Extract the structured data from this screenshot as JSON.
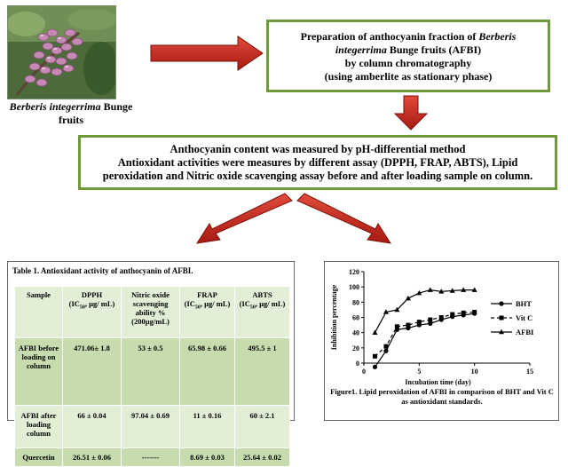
{
  "photo": {
    "caption_species": "Berberis integerrima",
    "caption_rest": "Bunge fruits"
  },
  "box1": {
    "line1_a": "Preparation of anthocyanin fraction of",
    "line1_b": "Berberis",
    "line2_a": "integerrima",
    "line2_b": "Bunge fruits (AFBI)",
    "line3": "by column  chromatography",
    "line4": "(using amberlite as stationary phase)"
  },
  "box2": {
    "line1": "Anthocyanin content was measured by pH-differential method",
    "line2": "Antioxidant  activities were measures by different assay (DPPH, FRAP, ABTS), Lipid",
    "line3": "peroxidation and Nitric oxide scavenging assay before and after loading sample on column."
  },
  "table": {
    "title": "Table  1. Antioxidant  activity  of anthocyanin  of AFBI.",
    "headers": [
      {
        "main": "Sample",
        "ic": "",
        "tail": ""
      },
      {
        "main": "DPPH",
        "ic": "(IC",
        "tail": ", µg/ mL)"
      },
      {
        "main": "Nitric oxide scavenging ability %",
        "ic": "",
        "tail": "(200µg/mL)"
      },
      {
        "main": "FRAP",
        "ic": "(IC",
        "tail": ", µg/ mL)"
      },
      {
        "main": "ABTS",
        "ic": "(IC",
        "tail": ", µg/ mL)"
      }
    ],
    "sub50": "50",
    "rows": [
      [
        "AFBI before loading on column",
        "471.06± 1.8",
        "53 ± 0.5",
        "65.98 ± 0.66",
        "495.5 ± 1"
      ],
      [
        "AFBI after loading column",
        "66 ± 0.04",
        "97.04 ± 0.69",
        "11 ± 0.16",
        "60 ± 2.1"
      ],
      [
        "Quercetin",
        "26.51 ± 0.06",
        "-------",
        "8.69 ± 0.03",
        "25.64 ± 0.02"
      ]
    ]
  },
  "chart_data": {
    "type": "line",
    "xlabel": "Incubation  time (day)",
    "ylabel": "Inhibition  percentage",
    "xlim": [
      0,
      15
    ],
    "ylim": [
      0,
      120
    ],
    "xticks": [
      0,
      5,
      10,
      15
    ],
    "yticks": [
      0,
      20,
      40,
      60,
      80,
      100,
      120
    ],
    "series": [
      {
        "name": "BHT",
        "marker": "circle",
        "x": [
          1,
          2,
          3,
          4,
          5,
          6,
          7,
          8,
          9,
          10
        ],
        "y": [
          -5,
          16,
          44,
          46,
          50,
          52,
          57,
          61,
          63,
          65
        ]
      },
      {
        "name": "Vit C",
        "marker": "square",
        "x": [
          1,
          2,
          3,
          4,
          5,
          6,
          7,
          8,
          9,
          10
        ],
        "y": [
          9,
          22,
          48,
          50,
          54,
          57,
          60,
          64,
          66,
          67
        ]
      },
      {
        "name": "AFBI",
        "marker": "triangle",
        "x": [
          1,
          2,
          3,
          4,
          5,
          6,
          7,
          8,
          9,
          10
        ],
        "y": [
          40,
          67,
          70,
          85,
          92,
          96,
          94,
          95,
          96,
          96
        ]
      }
    ],
    "legend_position": "right",
    "caption": "Figure1.  Lipid  peroxidation  of AFBI  in comparison  of BHT and  Vit C as antioxidant  standards."
  }
}
